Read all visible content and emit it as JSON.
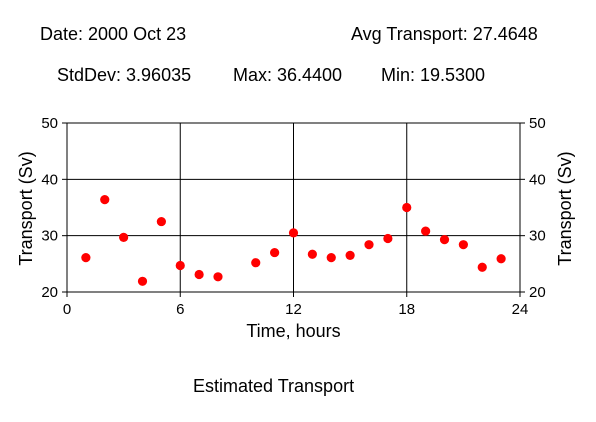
{
  "header": {
    "date": "Date: 2000 Oct 23",
    "avg": "Avg Transport: 27.4648",
    "stddev": "StdDev: 3.96035",
    "max": "Max: 36.4400",
    "min": "Min: 19.5300"
  },
  "caption": "Estimated Transport",
  "chart_data": {
    "type": "scatter",
    "title": "",
    "xlabel": "Time, hours",
    "ylabel": "Transport (Sv)",
    "ylabel_right": "Transport (Sv)",
    "xlim": [
      0,
      24
    ],
    "ylim": [
      20,
      50
    ],
    "xticks": [
      0,
      6,
      12,
      18,
      24
    ],
    "yticks": [
      20,
      30,
      40,
      50
    ],
    "grid": true,
    "marker_color": "#ff0000",
    "series": [
      {
        "x": [
          1,
          2,
          3,
          4,
          5,
          6,
          7,
          8,
          10,
          11,
          12,
          13,
          14,
          15,
          16,
          17,
          18,
          19,
          20,
          21,
          22,
          23
        ],
        "y": [
          26.1,
          36.4,
          29.7,
          21.9,
          32.5,
          24.7,
          23.1,
          22.7,
          25.2,
          27.0,
          30.5,
          26.7,
          26.1,
          26.5,
          28.4,
          29.5,
          35.0,
          30.8,
          29.3,
          28.4,
          24.4,
          25.9
        ]
      }
    ]
  }
}
